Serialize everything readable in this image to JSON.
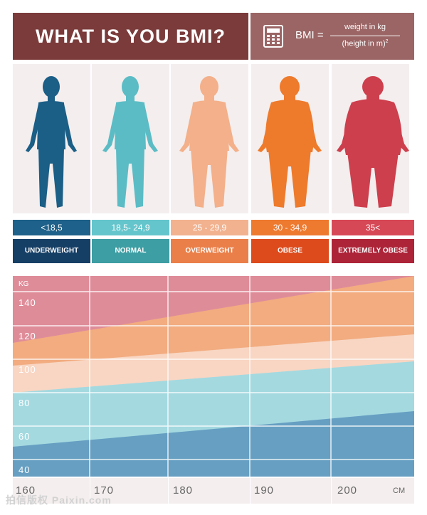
{
  "title": "WHAT IS YOU BMI?",
  "formula": {
    "lhs": "BMI =",
    "numerator": "weight in kg",
    "denominator": "(height in m)",
    "exponent": "2",
    "icon": "calculator-icon"
  },
  "categories": [
    {
      "range": "<18,5",
      "label": "UNDERWEIGHT",
      "color": "#1b5e86",
      "range_bg": "#1e618a",
      "label_bg": "#163f66"
    },
    {
      "range": "18,5- 24,9",
      "label": "NORMAL",
      "color": "#5bbcc5",
      "range_bg": "#65c5cc",
      "label_bg": "#3d9ea3"
    },
    {
      "range": "25 - 29,9",
      "label": "OVERWEIGHT",
      "color": "#f3b08a",
      "range_bg": "#f2b28f",
      "label_bg": "#ea7f49"
    },
    {
      "range": "30 - 34,9",
      "label": "OBESE",
      "color": "#ee7a2c",
      "range_bg": "#ee7a2f",
      "label_bg": "#dd4a1c"
    },
    {
      "range": "35<",
      "label": "EXTREMELY OBESE",
      "color": "#cd3f4d",
      "range_bg": "#d74856",
      "label_bg": "#ad2338"
    }
  ],
  "chart_data": {
    "type": "area",
    "y_unit": "KG",
    "x_unit": "CM",
    "y_ticks": [
      "140",
      "120",
      "100",
      "80",
      "60",
      "40"
    ],
    "x_ticks": [
      "160",
      "170",
      "180",
      "190",
      "200"
    ],
    "ylim": [
      35,
      150
    ],
    "xlim": [
      155,
      205
    ],
    "band_colors": {
      "underweight": "#669fc2",
      "normal": "#a4d9e0",
      "overweight": "#f8d6c3",
      "obese": "#f2ac80",
      "extremely_obese": "#df8c99"
    }
  },
  "watermark": "拍信版权 Paixin.com"
}
